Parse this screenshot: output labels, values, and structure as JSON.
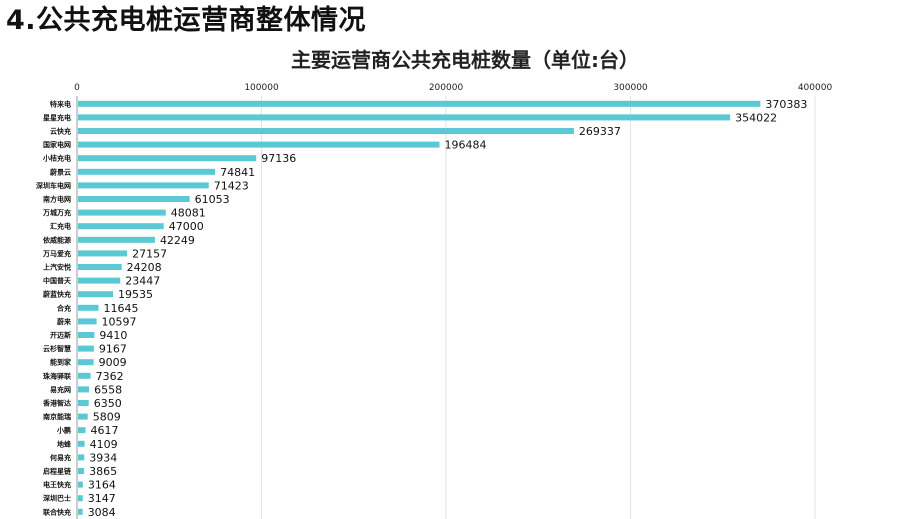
{
  "page": {
    "heading": "4.公共充电桩运营商整体情况"
  },
  "chart_data": {
    "type": "bar",
    "orientation": "horizontal",
    "title": "主要运营商公共充电桩数量（单位:台）",
    "xlim": [
      0,
      400000
    ],
    "xticks": [
      "0",
      "100000",
      "200000",
      "300000",
      "400000"
    ],
    "axis_position": "top",
    "grid": true,
    "bar_color": "#5bc8d6",
    "categories": [
      "特来电",
      "星星充电",
      "云快充",
      "国家电网",
      "小桔充电",
      "蔚景云",
      "深圳车电网",
      "南方电网",
      "万城万充",
      "汇充电",
      "依威能源",
      "万马爱充",
      "上汽安悦",
      "中国普天",
      "蔚蓝快充",
      "合充",
      "蔚来",
      "开迈斯",
      "云杉智慧",
      "能到家",
      "珠海驿联",
      "易充网",
      "香港智达",
      "南京能瑞",
      "小鹏",
      "地蜂",
      "何易充",
      "启程星链",
      "电王快充",
      "深圳巴士",
      "联合快充"
    ],
    "values": [
      370383,
      354022,
      269337,
      196484,
      97136,
      74841,
      71423,
      61053,
      48081,
      47000,
      42249,
      27157,
      24208,
      23447,
      19535,
      11645,
      10597,
      9410,
      9167,
      9009,
      7362,
      6558,
      6350,
      5809,
      4617,
      4109,
      3934,
      3865,
      3164,
      3147,
      3084
    ],
    "value_labels": [
      "370383",
      "354022",
      "269337",
      "196484",
      "97136",
      "74841",
      "71423",
      "61053",
      "48081",
      "47000",
      "42249",
      "27157",
      "24208",
      "23447",
      "19535",
      "11645",
      "10597",
      "9410",
      "9167",
      "9009",
      "7362",
      "6558",
      "6350",
      "5809",
      "4617",
      "4109",
      "3934",
      "3865",
      "3164",
      "3147",
      "3084"
    ]
  }
}
